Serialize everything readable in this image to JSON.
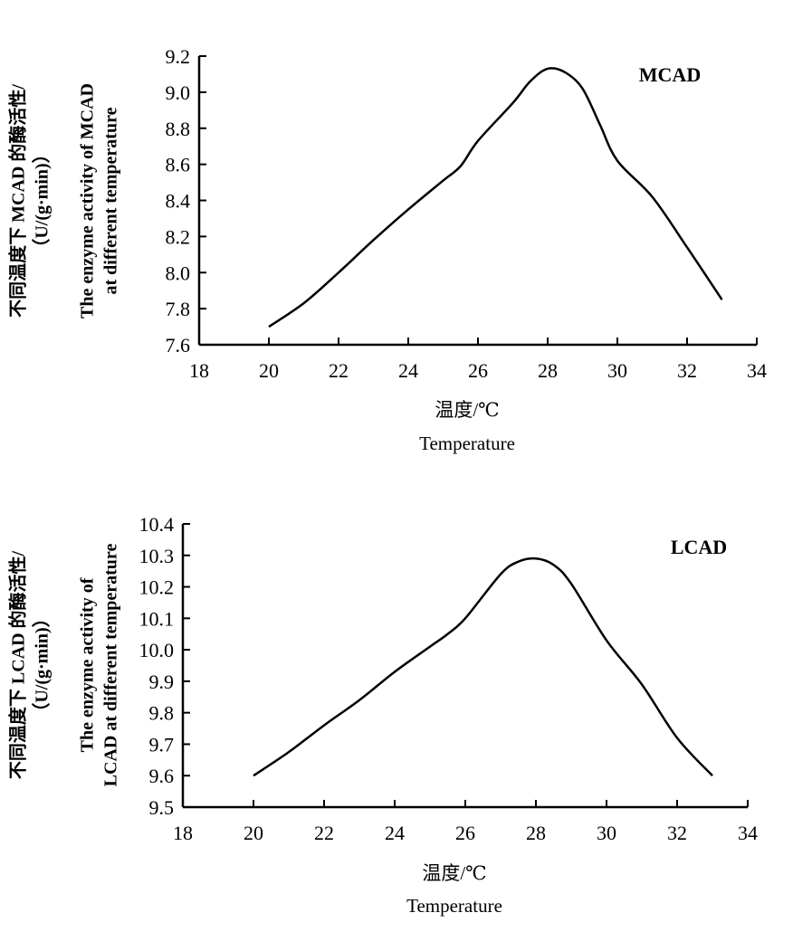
{
  "chart_data": [
    {
      "type": "line",
      "ylabel": [
        "不同温度下 MCAD 的酶活性/",
        "（U/(g·min)）",
        "The enzyme activity of MCAD",
        "at different temperature"
      ],
      "xlabel": [
        "温度/℃",
        "Temperature"
      ],
      "xlim": [
        18,
        34
      ],
      "ylim": [
        7.6,
        9.2
      ],
      "xticks": [
        "18",
        "20",
        "22",
        "24",
        "26",
        "28",
        "30",
        "32",
        "34"
      ],
      "yticks": [
        "7.6",
        "7.8",
        "8.0",
        "8.2",
        "8.4",
        "8.6",
        "8.8",
        "9.0",
        "9.2"
      ],
      "grid": false,
      "annotation": "MCAD",
      "series": [
        {
          "name": "MCAD",
          "x": [
            20,
            21,
            22,
            23,
            24,
            25,
            25.5,
            26,
            27,
            27.5,
            28,
            28.5,
            29,
            29.5,
            30,
            31,
            32,
            33
          ],
          "y": [
            7.7,
            7.83,
            8.0,
            8.18,
            8.35,
            8.51,
            8.59,
            8.73,
            8.94,
            9.06,
            9.13,
            9.11,
            9.02,
            8.82,
            8.62,
            8.42,
            8.14,
            7.85
          ]
        }
      ]
    },
    {
      "type": "line",
      "ylabel": [
        "不同温度下 LCAD 的酶活性/",
        "（U/(g·min)）",
        "The enzyme activity of",
        "LCAD at different temperature"
      ],
      "xlabel": [
        "温度/℃",
        "Temperature"
      ],
      "xlim": [
        18,
        34
      ],
      "ylim": [
        9.5,
        10.4
      ],
      "xticks": [
        "18",
        "20",
        "22",
        "24",
        "26",
        "28",
        "30",
        "32",
        "34"
      ],
      "yticks": [
        "9.5",
        "9.6",
        "9.7",
        "9.8",
        "9.9",
        "10.0",
        "10.1",
        "10.2",
        "10.3",
        "10.4"
      ],
      "grid": false,
      "annotation": "LCAD",
      "series": [
        {
          "name": "LCAD",
          "x": [
            20,
            21,
            22,
            23,
            24,
            25,
            25.5,
            26,
            27,
            27.5,
            28,
            28.5,
            29,
            30,
            31,
            32,
            33
          ],
          "y": [
            9.6,
            9.675,
            9.76,
            9.84,
            9.93,
            10.01,
            10.05,
            10.1,
            10.24,
            10.28,
            10.29,
            10.27,
            10.21,
            10.03,
            9.89,
            9.72,
            9.6
          ]
        }
      ]
    }
  ]
}
